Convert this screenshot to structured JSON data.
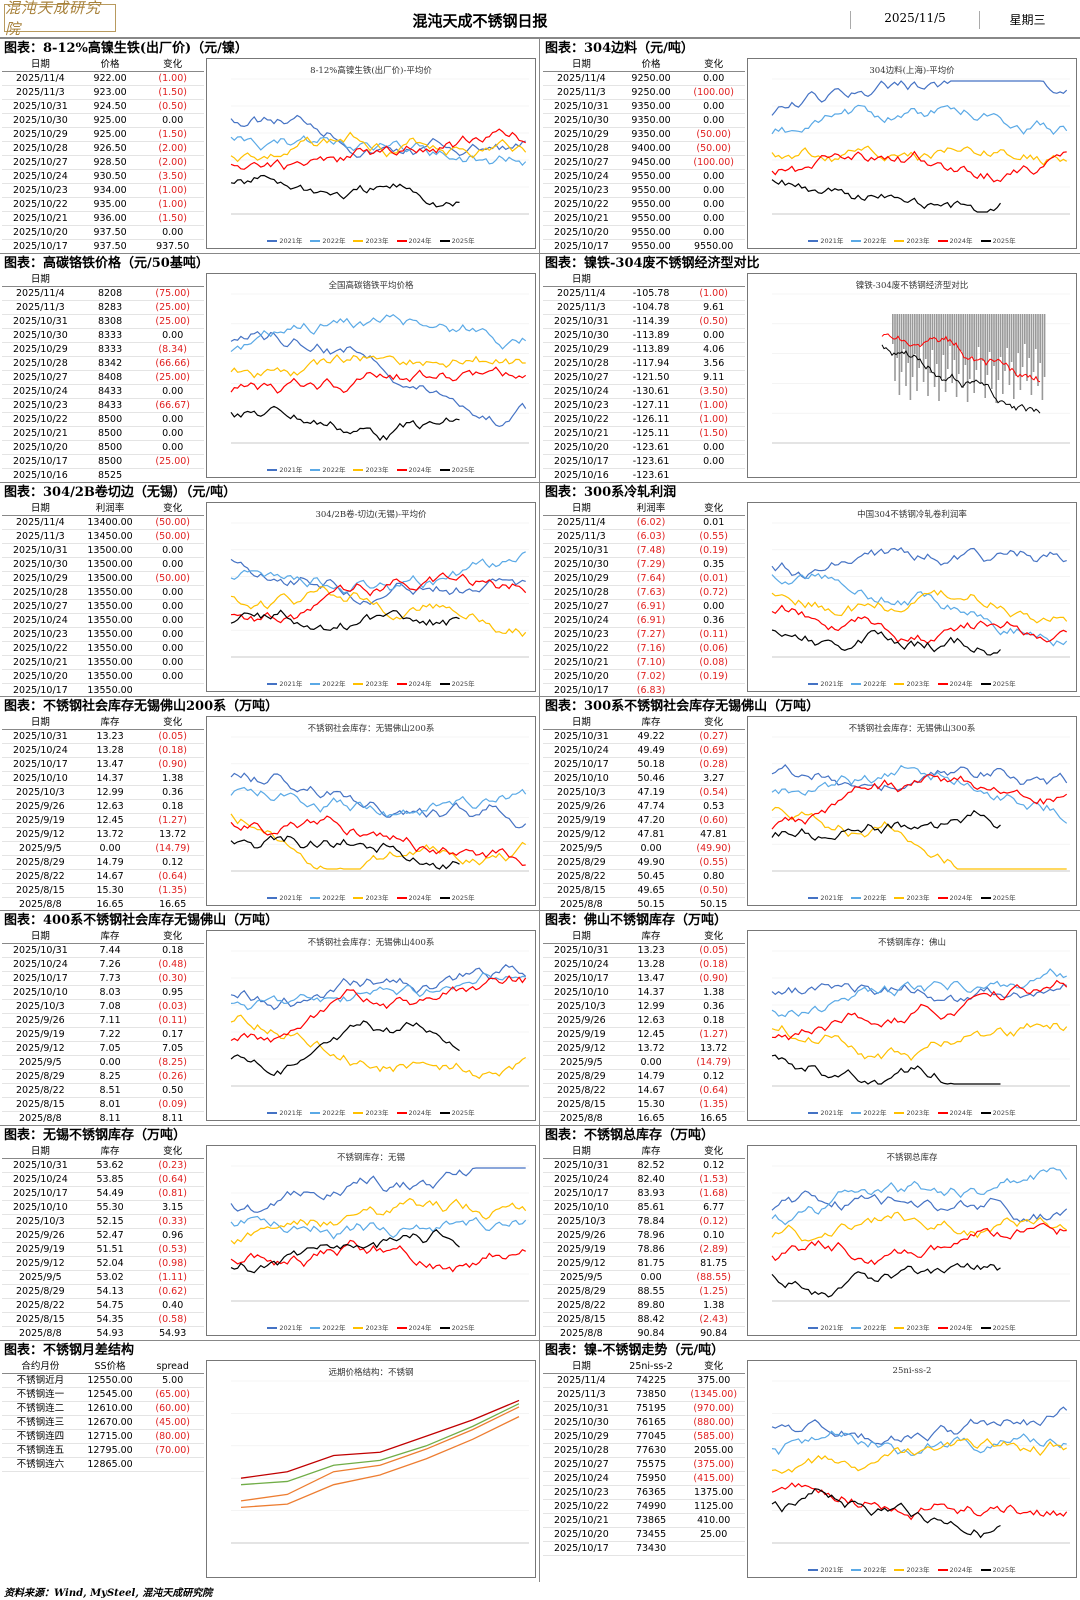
{
  "header": {
    "logo": "混沌天成研究院",
    "title": "混沌天成不锈钢日报",
    "date": "2025/11/5",
    "weekday": "星期三"
  },
  "colors": {
    "y2021": "#4472c4",
    "y2022": "#5aa9e6",
    "y2023": "#ffc000",
    "y2024": "#ff0000",
    "y2025": "#000000",
    "neg": "#e02020"
  },
  "panels": [
    {
      "title": "图表：8-12%高镍生铁(出厂价)（元/镍）",
      "cols": [
        "日期",
        "价格",
        "变化"
      ],
      "rows": [
        [
          "2025/11/4",
          "922.00",
          "(1.00)"
        ],
        [
          "2025/11/3",
          "923.00",
          "(1.50)"
        ],
        [
          "2025/10/31",
          "924.50",
          "(0.50)"
        ],
        [
          "2025/10/30",
          "925.00",
          "0.00"
        ],
        [
          "2025/10/29",
          "925.00",
          "(1.50)"
        ],
        [
          "2025/10/28",
          "926.50",
          "(2.00)"
        ],
        [
          "2025/10/27",
          "928.50",
          "(2.00)"
        ],
        [
          "2025/10/24",
          "930.50",
          "(3.50)"
        ],
        [
          "2025/10/23",
          "934.00",
          "(1.00)"
        ],
        [
          "2025/10/22",
          "935.00",
          "(1.00)"
        ],
        [
          "2025/10/21",
          "936.00",
          "(1.50)"
        ],
        [
          "2025/10/20",
          "937.50",
          "0.00"
        ],
        [
          "2025/10/17",
          "937.50",
          "937.50"
        ]
      ],
      "chart": {
        "title": "8-12%高镍生铁(出厂价)-平均价",
        "type": "seasonal"
      }
    },
    {
      "title": "图表：304边料（元/吨）",
      "cols": [
        "日期",
        "价格",
        "变化"
      ],
      "rows": [
        [
          "2025/11/4",
          "9250.00",
          "0.00"
        ],
        [
          "2025/11/3",
          "9250.00",
          "(100.00)"
        ],
        [
          "2025/10/31",
          "9350.00",
          "0.00"
        ],
        [
          "2025/10/30",
          "9350.00",
          "0.00"
        ],
        [
          "2025/10/29",
          "9350.00",
          "(50.00)"
        ],
        [
          "2025/10/28",
          "9400.00",
          "(50.00)"
        ],
        [
          "2025/10/27",
          "9450.00",
          "(100.00)"
        ],
        [
          "2025/10/24",
          "9550.00",
          "0.00"
        ],
        [
          "2025/10/23",
          "9550.00",
          "0.00"
        ],
        [
          "2025/10/22",
          "9550.00",
          "0.00"
        ],
        [
          "2025/10/21",
          "9550.00",
          "0.00"
        ],
        [
          "2025/10/20",
          "9550.00",
          "0.00"
        ],
        [
          "2025/10/17",
          "9550.00",
          "9550.00"
        ]
      ],
      "chart": {
        "title": "304边料(上海)-平均价",
        "type": "seasonal"
      }
    },
    {
      "title": "图表：高碳铬铁价格（元/50基吨）",
      "cols": [
        "日期",
        "",
        ""
      ],
      "rows": [
        [
          "2025/11/4",
          "8208",
          "(75.00)"
        ],
        [
          "2025/11/3",
          "8283",
          "(25.00)"
        ],
        [
          "2025/10/31",
          "8308",
          "(25.00)"
        ],
        [
          "2025/10/30",
          "8333",
          "0.00"
        ],
        [
          "2025/10/29",
          "8333",
          "(8.34)"
        ],
        [
          "2025/10/28",
          "8342",
          "(66.66)"
        ],
        [
          "2025/10/27",
          "8408",
          "(25.00)"
        ],
        [
          "2025/10/24",
          "8433",
          "0.00"
        ],
        [
          "2025/10/23",
          "8433",
          "(66.67)"
        ],
        [
          "2025/10/22",
          "8500",
          "0.00"
        ],
        [
          "2025/10/21",
          "8500",
          "0.00"
        ],
        [
          "2025/10/20",
          "8500",
          "0.00"
        ],
        [
          "2025/10/17",
          "8500",
          "(25.00)"
        ],
        [
          "2025/10/16",
          "8525",
          ""
        ]
      ],
      "chart": {
        "title": "全国高碳铬铁平均价格",
        "type": "seasonal"
      }
    },
    {
      "title": "图表：镍铁-304废不锈钢经济型对比",
      "cols": [
        "日期",
        "",
        ""
      ],
      "rows": [
        [
          "2025/11/4",
          "-105.78",
          "(1.00)"
        ],
        [
          "2025/11/3",
          "-104.78",
          "9.61"
        ],
        [
          "2025/10/31",
          "-114.39",
          "(0.50)"
        ],
        [
          "2025/10/30",
          "-113.89",
          "0.00"
        ],
        [
          "2025/10/29",
          "-113.89",
          "4.06"
        ],
        [
          "2025/10/28",
          "-117.94",
          "3.56"
        ],
        [
          "2025/10/27",
          "-121.50",
          "9.11"
        ],
        [
          "2025/10/24",
          "-130.61",
          "(3.50)"
        ],
        [
          "2025/10/23",
          "-127.11",
          "(1.00)"
        ],
        [
          "2025/10/22",
          "-126.11",
          "(1.00)"
        ],
        [
          "2025/10/21",
          "-125.11",
          "(1.50)"
        ],
        [
          "2025/10/20",
          "-123.61",
          "0.00"
        ],
        [
          "2025/10/17",
          "-123.61",
          "0.00"
        ],
        [
          "2025/10/16",
          "-123.61",
          ""
        ]
      ],
      "chart": {
        "title": "镍铁-304废不锈钢经济型对比",
        "type": "compare"
      }
    },
    {
      "title": "图表：304/2B卷切边（无锡）（元/吨）",
      "cols": [
        "日期",
        "利润率",
        "变化"
      ],
      "rows": [
        [
          "2025/11/4",
          "13400.00",
          "(50.00)"
        ],
        [
          "2025/11/3",
          "13450.00",
          "(50.00)"
        ],
        [
          "2025/10/31",
          "13500.00",
          "0.00"
        ],
        [
          "2025/10/30",
          "13500.00",
          "0.00"
        ],
        [
          "2025/10/29",
          "13500.00",
          "(50.00)"
        ],
        [
          "2025/10/28",
          "13550.00",
          "0.00"
        ],
        [
          "2025/10/27",
          "13550.00",
          "0.00"
        ],
        [
          "2025/10/24",
          "13550.00",
          "0.00"
        ],
        [
          "2025/10/23",
          "13550.00",
          "0.00"
        ],
        [
          "2025/10/22",
          "13550.00",
          "0.00"
        ],
        [
          "2025/10/21",
          "13550.00",
          "0.00"
        ],
        [
          "2025/10/20",
          "13550.00",
          "0.00"
        ],
        [
          "2025/10/17",
          "13550.00",
          ""
        ]
      ],
      "chart": {
        "title": "304/2B卷-切边(无锡)-平均价",
        "type": "seasonal"
      }
    },
    {
      "title": "图表：300系冷轧利润",
      "cols": [
        "日期",
        "利润率",
        "变化"
      ],
      "rows": [
        [
          "2025/11/4",
          "(6.02)",
          "0.01"
        ],
        [
          "2025/11/3",
          "(6.03)",
          "(0.55)"
        ],
        [
          "2025/10/31",
          "(7.48)",
          "(0.19)"
        ],
        [
          "2025/10/30",
          "(7.29)",
          "0.35"
        ],
        [
          "2025/10/29",
          "(7.64)",
          "(0.01)"
        ],
        [
          "2025/10/28",
          "(7.63)",
          "(0.72)"
        ],
        [
          "2025/10/27",
          "(6.91)",
          "0.00"
        ],
        [
          "2025/10/24",
          "(6.91)",
          "0.36"
        ],
        [
          "2025/10/23",
          "(7.27)",
          "(0.11)"
        ],
        [
          "2025/10/22",
          "(7.16)",
          "(0.06)"
        ],
        [
          "2025/10/21",
          "(7.10)",
          "(0.08)"
        ],
        [
          "2025/10/20",
          "(7.02)",
          "(0.19)"
        ],
        [
          "2025/10/17",
          "(6.83)",
          ""
        ]
      ],
      "chart": {
        "title": "中国304不锈钢冷轧卷利润率",
        "type": "seasonal"
      }
    },
    {
      "title": "图表：不锈钢社会库存无锡佛山200系（万吨）",
      "cols": [
        "日期",
        "库存",
        "变化"
      ],
      "rows": [
        [
          "2025/10/31",
          "13.23",
          "(0.05)"
        ],
        [
          "2025/10/24",
          "13.28",
          "(0.18)"
        ],
        [
          "2025/10/17",
          "13.47",
          "(0.90)"
        ],
        [
          "2025/10/10",
          "14.37",
          "1.38"
        ],
        [
          "2025/10/3",
          "12.99",
          "0.36"
        ],
        [
          "2025/9/26",
          "12.63",
          "0.18"
        ],
        [
          "2025/9/19",
          "12.45",
          "(1.27)"
        ],
        [
          "2025/9/12",
          "13.72",
          "13.72"
        ],
        [
          "2025/9/5",
          "0.00",
          "(14.79)"
        ],
        [
          "2025/8/29",
          "14.79",
          "0.12"
        ],
        [
          "2025/8/22",
          "14.67",
          "(0.64)"
        ],
        [
          "2025/8/15",
          "15.30",
          "(1.35)"
        ],
        [
          "2025/8/8",
          "16.65",
          "16.65"
        ]
      ],
      "chart": {
        "title": "不锈钢社会库存：无锡佛山200系",
        "type": "seasonal"
      }
    },
    {
      "title": "图表：300系不锈钢社会库存无锡佛山（万吨）",
      "cols": [
        "日期",
        "库存",
        "变化"
      ],
      "rows": [
        [
          "2025/10/31",
          "49.22",
          "(0.27)"
        ],
        [
          "2025/10/24",
          "49.49",
          "(0.69)"
        ],
        [
          "2025/10/17",
          "50.18",
          "(0.28)"
        ],
        [
          "2025/10/10",
          "50.46",
          "3.27"
        ],
        [
          "2025/10/3",
          "47.19",
          "(0.54)"
        ],
        [
          "2025/9/26",
          "47.74",
          "0.53"
        ],
        [
          "2025/9/19",
          "47.20",
          "(0.60)"
        ],
        [
          "2025/9/12",
          "47.81",
          "47.81"
        ],
        [
          "2025/9/5",
          "0.00",
          "(49.90)"
        ],
        [
          "2025/8/29",
          "49.90",
          "(0.55)"
        ],
        [
          "2025/8/22",
          "50.45",
          "0.80"
        ],
        [
          "2025/8/15",
          "49.65",
          "(0.50)"
        ],
        [
          "2025/8/8",
          "50.15",
          "50.15"
        ]
      ],
      "chart": {
        "title": "不锈钢社会库存：无锡佛山300系",
        "type": "seasonal"
      }
    },
    {
      "title": "图表：400系不锈钢社会库存无锡佛山（万吨）",
      "cols": [
        "日期",
        "库存",
        "变化"
      ],
      "rows": [
        [
          "2025/10/31",
          "7.44",
          "0.18"
        ],
        [
          "2025/10/24",
          "7.26",
          "(0.48)"
        ],
        [
          "2025/10/17",
          "7.73",
          "(0.30)"
        ],
        [
          "2025/10/10",
          "8.03",
          "0.95"
        ],
        [
          "2025/10/3",
          "7.08",
          "(0.03)"
        ],
        [
          "2025/9/26",
          "7.11",
          "(0.11)"
        ],
        [
          "2025/9/19",
          "7.22",
          "0.17"
        ],
        [
          "2025/9/12",
          "7.05",
          "7.05"
        ],
        [
          "2025/9/5",
          "0.00",
          "(8.25)"
        ],
        [
          "2025/8/29",
          "8.25",
          "(0.26)"
        ],
        [
          "2025/8/22",
          "8.51",
          "0.50"
        ],
        [
          "2025/8/15",
          "8.01",
          "(0.09)"
        ],
        [
          "2025/8/8",
          "8.11",
          "8.11"
        ]
      ],
      "chart": {
        "title": "不锈钢社会库存：无锡佛山400系",
        "type": "seasonal"
      }
    },
    {
      "title": "图表：佛山不锈钢库存（万吨）",
      "cols": [
        "日期",
        "库存",
        "变化"
      ],
      "rows": [
        [
          "2025/10/31",
          "13.23",
          "(0.05)"
        ],
        [
          "2025/10/24",
          "13.28",
          "(0.18)"
        ],
        [
          "2025/10/17",
          "13.47",
          "(0.90)"
        ],
        [
          "2025/10/10",
          "14.37",
          "1.38"
        ],
        [
          "2025/10/3",
          "12.99",
          "0.36"
        ],
        [
          "2025/9/26",
          "12.63",
          "0.18"
        ],
        [
          "2025/9/19",
          "12.45",
          "(1.27)"
        ],
        [
          "2025/9/12",
          "13.72",
          "13.72"
        ],
        [
          "2025/9/5",
          "0.00",
          "(14.79)"
        ],
        [
          "2025/8/29",
          "14.79",
          "0.12"
        ],
        [
          "2025/8/22",
          "14.67",
          "(0.64)"
        ],
        [
          "2025/8/15",
          "15.30",
          "(1.35)"
        ],
        [
          "2025/8/8",
          "16.65",
          "16.65"
        ]
      ],
      "chart": {
        "title": "不锈钢库存：佛山",
        "type": "seasonal"
      }
    },
    {
      "title": "图表：无锡不锈钢库存（万吨）",
      "cols": [
        "日期",
        "库存",
        "变化"
      ],
      "rows": [
        [
          "2025/10/31",
          "53.62",
          "(0.23)"
        ],
        [
          "2025/10/24",
          "53.85",
          "(0.64)"
        ],
        [
          "2025/10/17",
          "54.49",
          "(0.81)"
        ],
        [
          "2025/10/10",
          "55.30",
          "3.15"
        ],
        [
          "2025/10/3",
          "52.15",
          "(0.33)"
        ],
        [
          "2025/9/26",
          "52.47",
          "0.96"
        ],
        [
          "2025/9/19",
          "51.51",
          "(0.53)"
        ],
        [
          "2025/9/12",
          "52.04",
          "(0.98)"
        ],
        [
          "2025/9/5",
          "53.02",
          "(1.11)"
        ],
        [
          "2025/8/29",
          "54.13",
          "(0.62)"
        ],
        [
          "2025/8/22",
          "54.75",
          "0.40"
        ],
        [
          "2025/8/15",
          "54.35",
          "(0.58)"
        ],
        [
          "2025/8/8",
          "54.93",
          "54.93"
        ]
      ],
      "chart": {
        "title": "不锈钢库存：无锡",
        "type": "seasonal"
      }
    },
    {
      "title": "图表：不锈钢总库存（万吨）",
      "cols": [
        "日期",
        "库存",
        "变化"
      ],
      "rows": [
        [
          "2025/10/31",
          "82.52",
          "0.12"
        ],
        [
          "2025/10/24",
          "82.40",
          "(1.53)"
        ],
        [
          "2025/10/17",
          "83.93",
          "(1.68)"
        ],
        [
          "2025/10/10",
          "85.61",
          "6.77"
        ],
        [
          "2025/10/3",
          "78.84",
          "(0.12)"
        ],
        [
          "2025/9/26",
          "78.96",
          "0.10"
        ],
        [
          "2025/9/19",
          "78.86",
          "(2.89)"
        ],
        [
          "2025/9/12",
          "81.75",
          "81.75"
        ],
        [
          "2025/9/5",
          "0.00",
          "(88.55)"
        ],
        [
          "2025/8/29",
          "88.55",
          "(1.25)"
        ],
        [
          "2025/8/22",
          "89.80",
          "1.38"
        ],
        [
          "2025/8/15",
          "88.42",
          "(2.43)"
        ],
        [
          "2025/8/8",
          "90.84",
          "90.84"
        ]
      ],
      "chart": {
        "title": "不锈钢总库存",
        "type": "seasonal"
      }
    },
    {
      "title": "图表：不锈钢月差结构",
      "cols": [
        "合约月份",
        "SS价格",
        "spread"
      ],
      "rows": [
        [
          "不锈钢近月",
          "12550.00",
          "5.00"
        ],
        [
          "不锈钢连一",
          "12545.00",
          "(65.00)"
        ],
        [
          "不锈钢连二",
          "12610.00",
          "(60.00)"
        ],
        [
          "不锈钢连三",
          "12670.00",
          "(45.00)"
        ],
        [
          "不锈钢连四",
          "12715.00",
          "(80.00)"
        ],
        [
          "不锈钢连五",
          "12795.00",
          "(70.00)"
        ],
        [
          "不锈钢连六",
          "12865.00",
          ""
        ]
      ],
      "chart": {
        "title": "远期价格结构：不锈钢",
        "type": "curve"
      }
    },
    {
      "title": "图表：镍-不锈钢走势（元/吨）",
      "cols": [
        "日期",
        "25ni-ss-2",
        "变化"
      ],
      "rows": [
        [
          "2025/11/4",
          "74225",
          "375.00"
        ],
        [
          "2025/11/3",
          "73850",
          "(1345.00)"
        ],
        [
          "2025/10/31",
          "75195",
          "(970.00)"
        ],
        [
          "2025/10/30",
          "76165",
          "(880.00)"
        ],
        [
          "2025/10/29",
          "77045",
          "(585.00)"
        ],
        [
          "2025/10/28",
          "77630",
          "2055.00"
        ],
        [
          "2025/10/27",
          "75575",
          "(375.00)"
        ],
        [
          "2025/10/24",
          "75950",
          "(415.00)"
        ],
        [
          "2025/10/23",
          "76365",
          "1375.00"
        ],
        [
          "2025/10/22",
          "74990",
          "1125.00"
        ],
        [
          "2025/10/21",
          "73865",
          "410.00"
        ],
        [
          "2025/10/20",
          "73455",
          "25.00"
        ],
        [
          "2025/10/17",
          "73430",
          ""
        ]
      ],
      "chart": {
        "title": "25ni-ss-2",
        "type": "seasonal"
      }
    }
  ],
  "legend": [
    "2021年",
    "2022年",
    "2023年",
    "2024年",
    "2025年"
  ],
  "footer": "资料来源：Wind, MySteel, 混沌天成研究院"
}
